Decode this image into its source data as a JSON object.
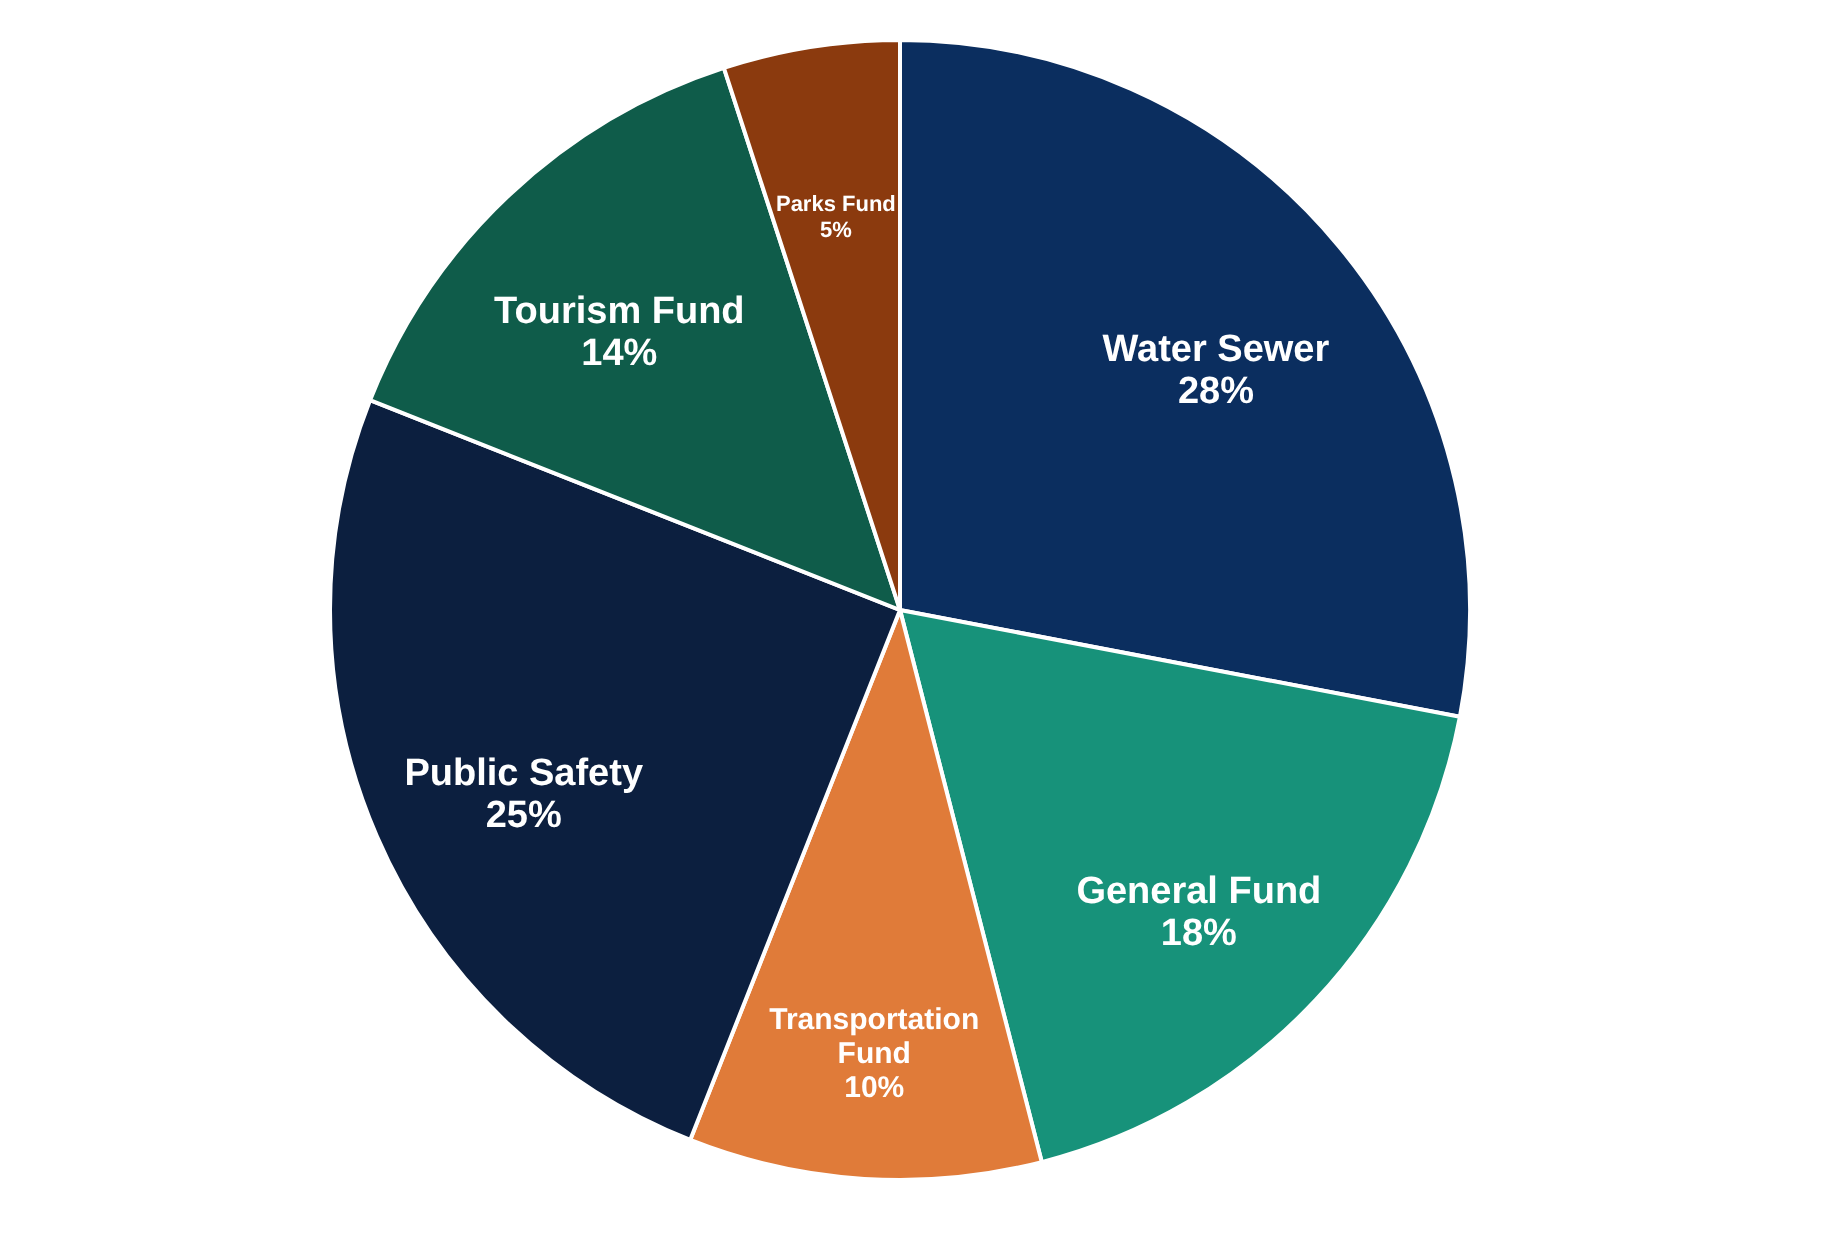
{
  "chart_data": {
    "type": "pie",
    "categories": [
      "Water Sewer",
      "General Fund",
      "Transportation Fund",
      "Public Safety",
      "Tourism Fund",
      "Parks Fund"
    ],
    "values": [
      28,
      18,
      10,
      25,
      14,
      5
    ],
    "value_labels": [
      "28%",
      "18%",
      "10%",
      "25%",
      "14%",
      "5%"
    ],
    "colors": [
      "#0b2e5f",
      "#17927a",
      "#e07b39",
      "#0c1f3f",
      "#0f5c4a",
      "#8b3a0e"
    ],
    "legend": false
  }
}
